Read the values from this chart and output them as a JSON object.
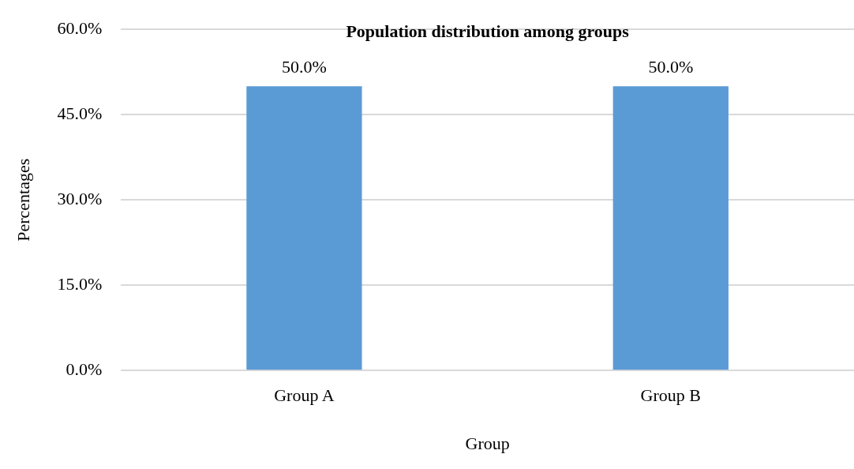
{
  "chart_data": {
    "type": "bar",
    "title": "Population distribution among groups",
    "xlabel": "Group",
    "ylabel": "Percentages",
    "categories": [
      "Group A",
      "Group B"
    ],
    "values": [
      50,
      50
    ],
    "value_labels": [
      "50.0%",
      "50.0%"
    ],
    "color": "#5b9bd5",
    "ylim": [
      0,
      60
    ],
    "yticks": [
      {
        "value": 0,
        "label": "0.0%"
      },
      {
        "value": 15,
        "label": "15.0%"
      },
      {
        "value": 30,
        "label": "30.0%"
      },
      {
        "value": 45,
        "label": "45.0%"
      },
      {
        "value": 60,
        "label": "60.0%"
      }
    ],
    "grid": "y",
    "legend": false
  }
}
